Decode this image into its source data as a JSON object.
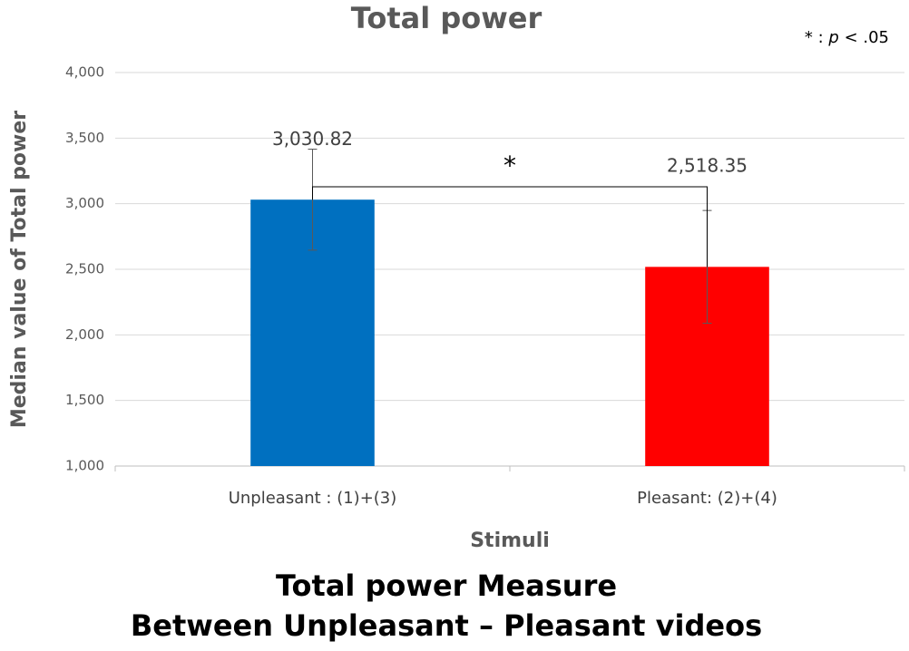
{
  "chart_data": {
    "type": "bar",
    "title": "Total power",
    "note": [
      "* : ",
      "p",
      " < .05"
    ],
    "x_label": "Stimuli",
    "y_label": "Median value of Total power",
    "categories": [
      "Unpleasant : (1)+(3)",
      "Pleasant: (2)+(4)"
    ],
    "values": [
      3030.82,
      2518.35
    ],
    "value_labels": [
      "3,030.82",
      "2,518.35"
    ],
    "errors": [
      385,
      430
    ],
    "colors": [
      "#0070c0",
      "#ff0000"
    ],
    "significance": "*",
    "ylim": [
      1000,
      4000
    ],
    "yticks": [
      {
        "value": 1000,
        "label": "1,000"
      },
      {
        "value": 1500,
        "label": "1,500"
      },
      {
        "value": 2000,
        "label": "2,000"
      },
      {
        "value": 2500,
        "label": "2,500"
      },
      {
        "value": 3000,
        "label": "3,000"
      },
      {
        "value": 3500,
        "label": "3,500"
      },
      {
        "value": 4000,
        "label": "4,000"
      }
    ],
    "grid": true,
    "caption": [
      "Total power Measure",
      "Between Unpleasant – Pleasant videos"
    ]
  }
}
